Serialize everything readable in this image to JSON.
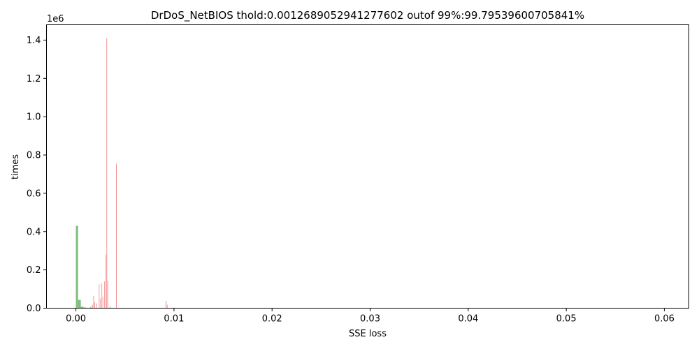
{
  "chart_data": {
    "type": "bar",
    "title": "DrDoS_NetBIOS thold:0.0012689052941277602 outof 99%:99.79539600705841%",
    "xlabel": "SSE loss",
    "ylabel": "times",
    "y_offset_label": "1e6",
    "xlim": [
      -0.003,
      0.0625
    ],
    "ylim": [
      0,
      1.48
    ],
    "x_ticks": [
      0.0,
      0.01,
      0.02,
      0.03,
      0.04,
      0.05,
      0.06
    ],
    "x_tick_labels": [
      "0.00",
      "0.01",
      "0.02",
      "0.03",
      "0.04",
      "0.05",
      "0.06"
    ],
    "y_ticks": [
      0.0,
      0.2,
      0.4,
      0.6,
      0.8,
      1.0,
      1.2,
      1.4
    ],
    "y_tick_labels": [
      "0.0",
      "0.2",
      "0.4",
      "0.6",
      "0.8",
      "1.0",
      "1.2",
      "1.4"
    ],
    "grid": false,
    "series": [
      {
        "color": "#7fbf7f",
        "bars": [
          {
            "x0": 0.0,
            "x1": 0.00022,
            "y": 0.43
          },
          {
            "x0": 0.00022,
            "x1": 0.0005,
            "y": 0.043
          },
          {
            "x0": 0.0005,
            "x1": 0.00075,
            "y": 0.008
          },
          {
            "x0": 0.00075,
            "x1": 0.001,
            "y": 0.004
          },
          {
            "x0": 0.001,
            "x1": 0.00127,
            "y": 0.002
          }
        ]
      },
      {
        "color": "#f08080",
        "bars": [
          {
            "x0": 0.00145,
            "x1": 0.00155,
            "y": 0.006
          },
          {
            "x0": 0.00165,
            "x1": 0.00172,
            "y": 0.018
          },
          {
            "x0": 0.00178,
            "x1": 0.00184,
            "y": 0.065
          },
          {
            "x0": 0.0019,
            "x1": 0.00196,
            "y": 0.03
          },
          {
            "x0": 0.0021,
            "x1": 0.00216,
            "y": 0.025
          },
          {
            "x0": 0.00235,
            "x1": 0.0024,
            "y": 0.125
          },
          {
            "x0": 0.00245,
            "x1": 0.0025,
            "y": 0.05
          },
          {
            "x0": 0.00262,
            "x1": 0.00267,
            "y": 0.13
          },
          {
            "x0": 0.00272,
            "x1": 0.00277,
            "y": 0.06
          },
          {
            "x0": 0.0029,
            "x1": 0.00295,
            "y": 0.14
          },
          {
            "x0": 0.00302,
            "x1": 0.00307,
            "y": 0.28
          },
          {
            "x0": 0.00312,
            "x1": 0.00318,
            "y": 1.41
          },
          {
            "x0": 0.00322,
            "x1": 0.00327,
            "y": 0.145
          },
          {
            "x0": 0.00345,
            "x1": 0.00352,
            "y": 0.01
          },
          {
            "x0": 0.0041,
            "x1": 0.00416,
            "y": 0.755
          },
          {
            "x0": 0.00915,
            "x1": 0.00922,
            "y": 0.038
          },
          {
            "x0": 0.00928,
            "x1": 0.00934,
            "y": 0.018
          }
        ]
      }
    ]
  }
}
